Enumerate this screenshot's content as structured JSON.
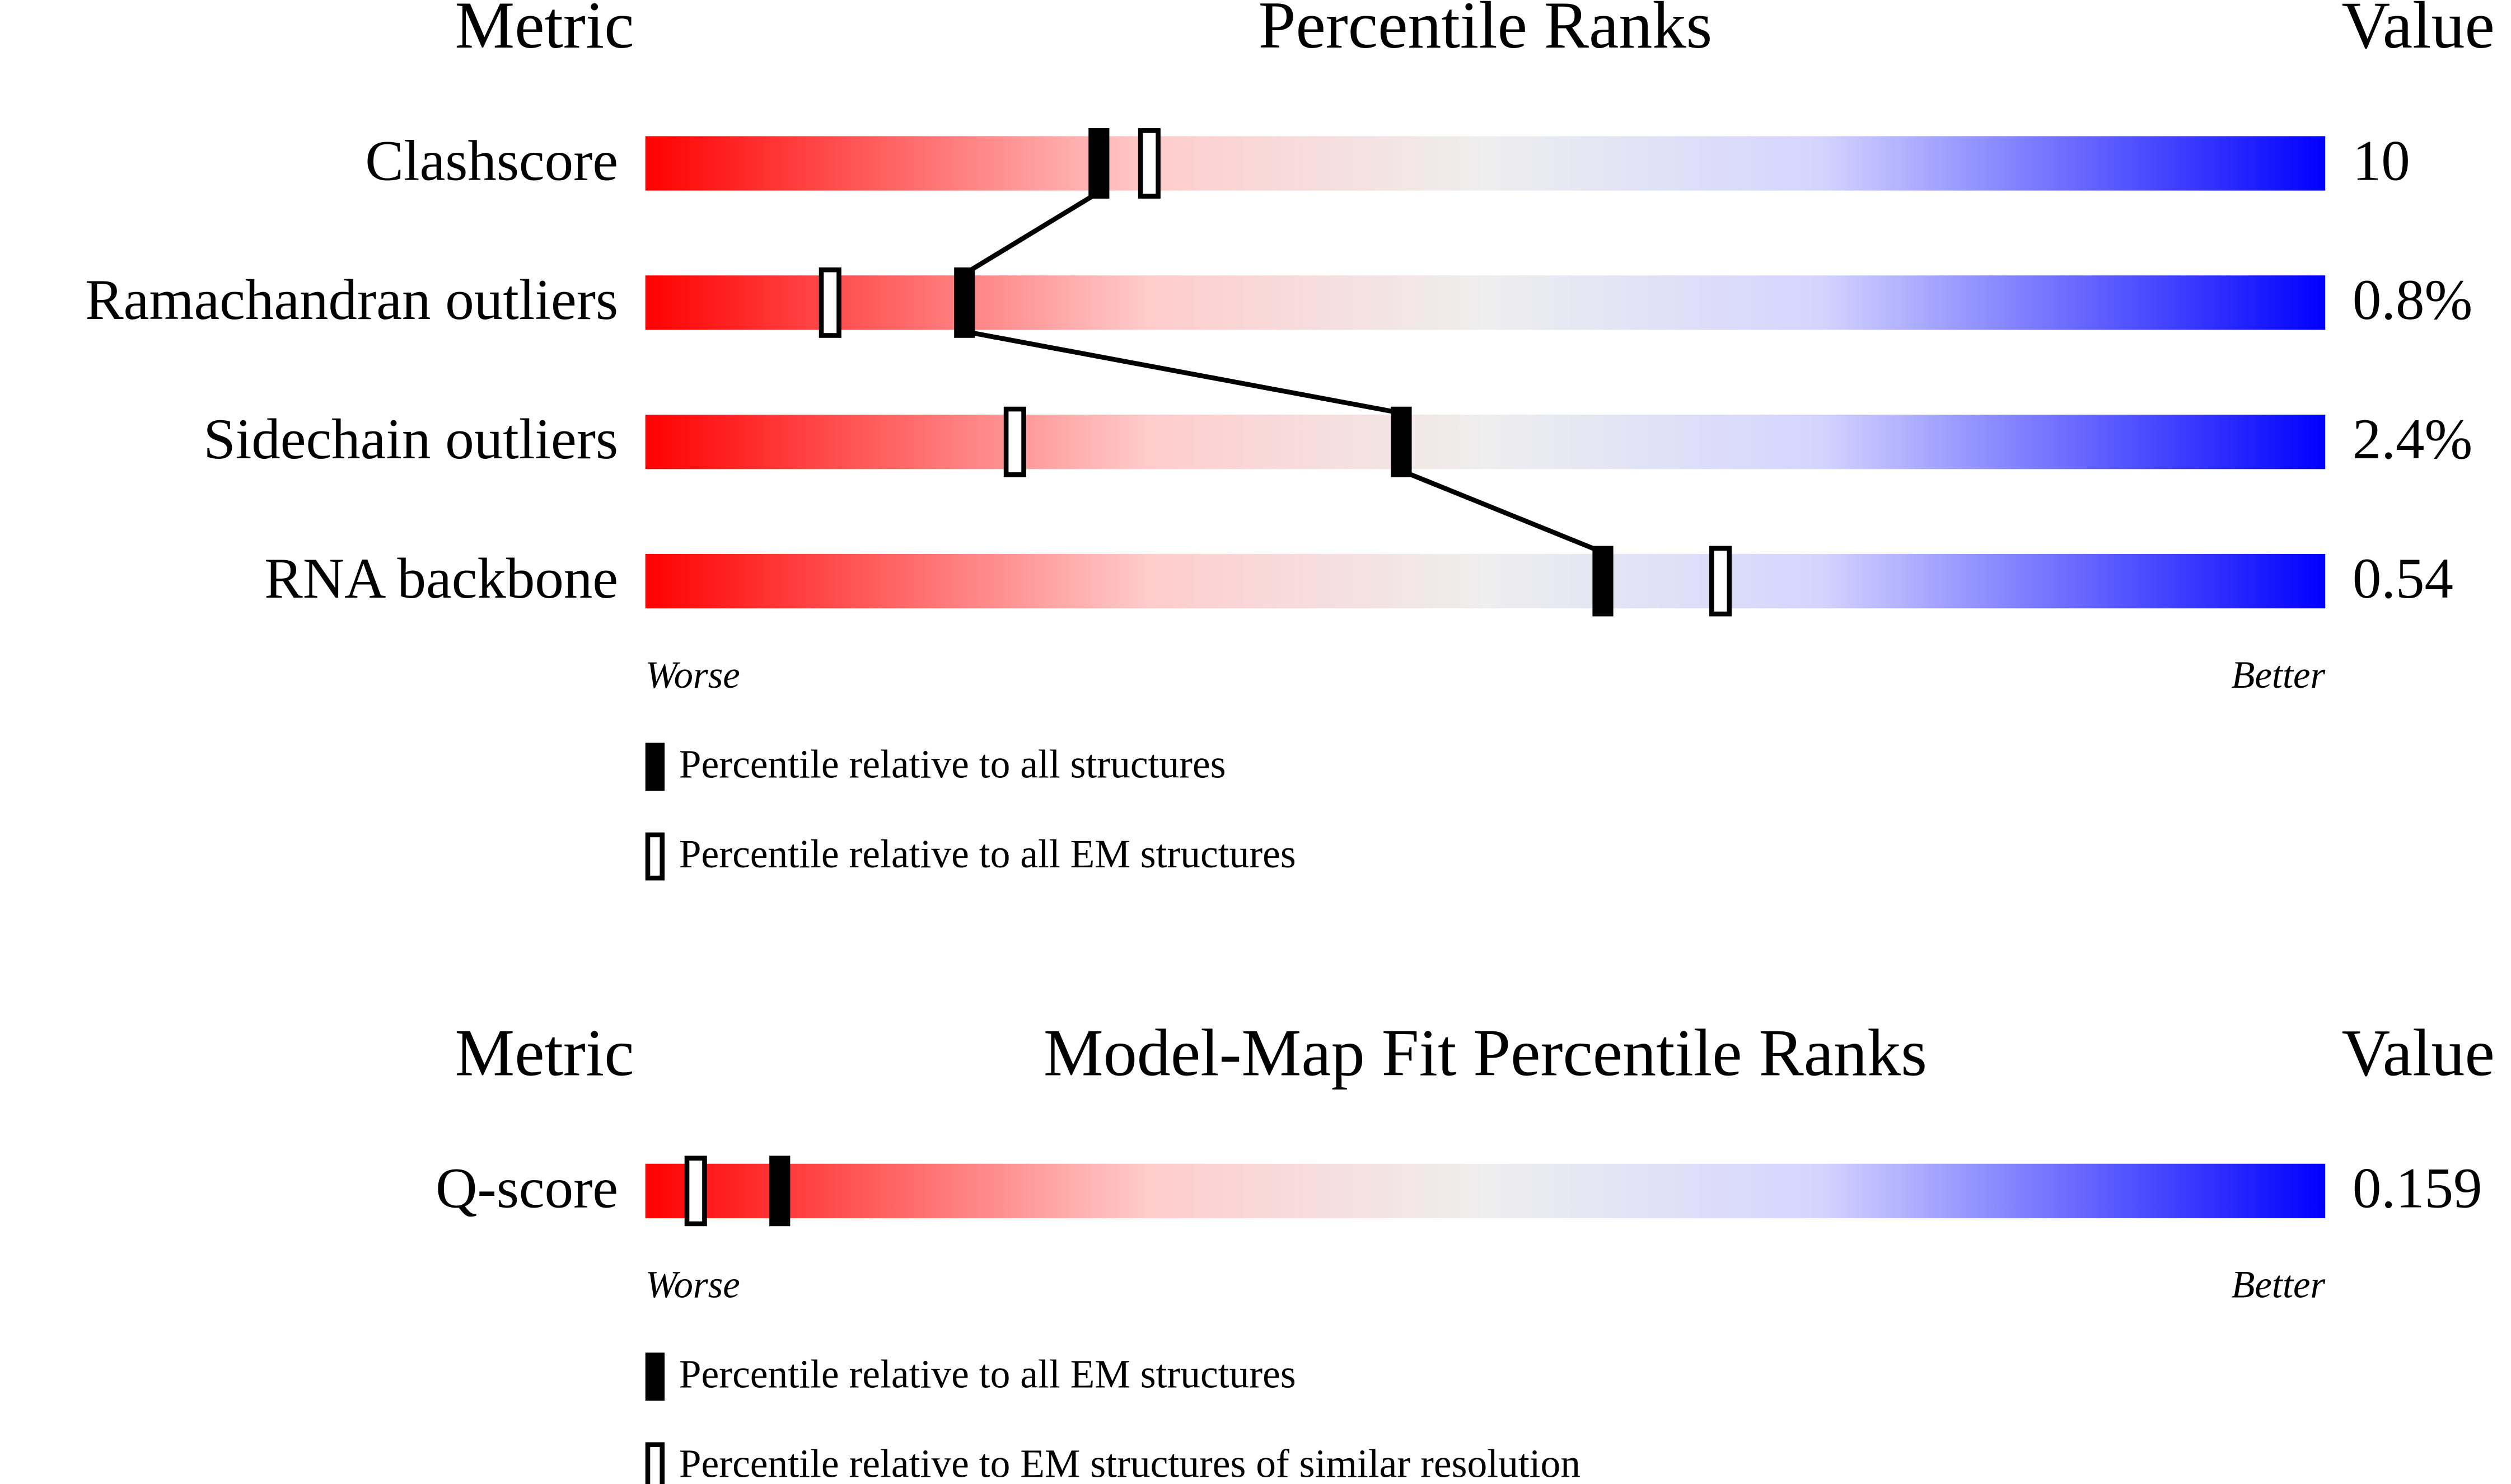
{
  "panels": [
    {
      "headers": {
        "metric": "Metric",
        "title": "Percentile Ranks",
        "value": "Value"
      },
      "xlim": [
        0,
        100
      ],
      "rows": [
        {
          "metric": "Clashscore",
          "value": "10",
          "percentile_all": 27,
          "percentile_em": 30
        },
        {
          "metric": "Ramachandran outliers",
          "value": "0.8%",
          "percentile_all": 19,
          "percentile_em": 11
        },
        {
          "metric": "Sidechain outliers",
          "value": "2.4%",
          "percentile_all": 45,
          "percentile_em": 22
        },
        {
          "metric": "RNA backbone",
          "value": "0.54",
          "percentile_all": 57,
          "percentile_em": 64
        }
      ],
      "scale": {
        "worse": "Worse",
        "better": "Better"
      },
      "legend": {
        "filled": "Percentile relative to all structures",
        "open": "Percentile relative to all EM structures"
      }
    },
    {
      "headers": {
        "metric": "Metric",
        "title": "Model-Map Fit Percentile Ranks",
        "value": "Value"
      },
      "xlim": [
        0,
        100
      ],
      "rows": [
        {
          "metric": "Q-score",
          "value": "0.159",
          "percentile_all": 8,
          "percentile_em": 3
        }
      ],
      "scale": {
        "worse": "Worse",
        "better": "Better"
      },
      "legend": {
        "filled": "Percentile relative to all EM structures",
        "open": "Percentile relative to EM structures of similar resolution"
      }
    }
  ]
}
